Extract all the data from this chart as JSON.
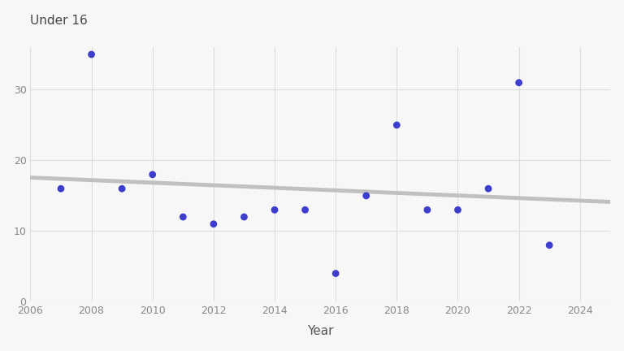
{
  "years": [
    2007,
    2008,
    2009,
    2010,
    2011,
    2012,
    2013,
    2014,
    2015,
    2016,
    2017,
    2018,
    2019,
    2020,
    2021,
    2022,
    2023
  ],
  "values": [
    16,
    35,
    16,
    18,
    12,
    11,
    12,
    13,
    13,
    4,
    15,
    25,
    13,
    13,
    16,
    31,
    8
  ],
  "dot_color": "#3333cc",
  "trend_color": "#c0c0c0",
  "trend_linewidth": 3.5,
  "top_label": "Under 16",
  "xlabel": "Year",
  "xlim": [
    2006,
    2025
  ],
  "ylim": [
    0,
    36
  ],
  "yticks": [
    0,
    10,
    20,
    30
  ],
  "xticks": [
    2006,
    2008,
    2010,
    2012,
    2014,
    2016,
    2018,
    2020,
    2022,
    2024
  ],
  "bg_color": "#f7f7f7",
  "grid_color": "#dddddd",
  "dot_size": 40,
  "dot_alpha": 0.95,
  "tick_label_color": "#888888",
  "axis_label_color": "#555555"
}
